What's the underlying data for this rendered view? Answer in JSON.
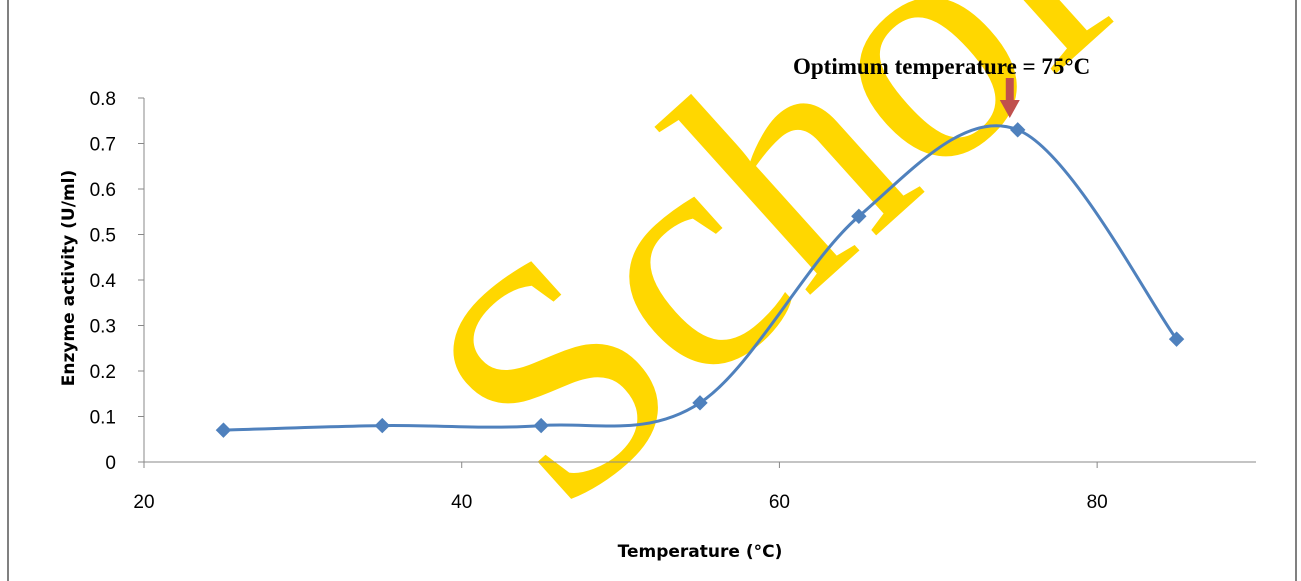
{
  "chart_data": {
    "type": "line",
    "title": "",
    "xlabel": "Temperature (°C)",
    "ylabel": "Enzyme activity (U/ml)",
    "xlim": [
      20,
      90
    ],
    "ylim": [
      0,
      0.8
    ],
    "x_ticks": [
      "20",
      "40",
      "60",
      "80"
    ],
    "y_ticks": [
      "0",
      "0.1",
      "0.2",
      "0.3",
      "0.4",
      "0.5",
      "0.6",
      "0.7",
      "0.8"
    ],
    "grid": false,
    "legend": "none",
    "series": [
      {
        "color": "#4f81bd",
        "marker": "diamond",
        "smooth": true,
        "x": [
          25,
          35,
          45,
          55,
          65,
          75,
          85
        ],
        "y": [
          0.07,
          0.08,
          0.08,
          0.13,
          0.54,
          0.73,
          0.27
        ]
      }
    ],
    "annotation": {
      "text": "Optimum temperature = 75°C",
      "points_to_x": 74.5,
      "arrow_color": "#c0504d"
    },
    "watermark": "ScholarlyPe",
    "watermark_color": "#ffd700"
  }
}
